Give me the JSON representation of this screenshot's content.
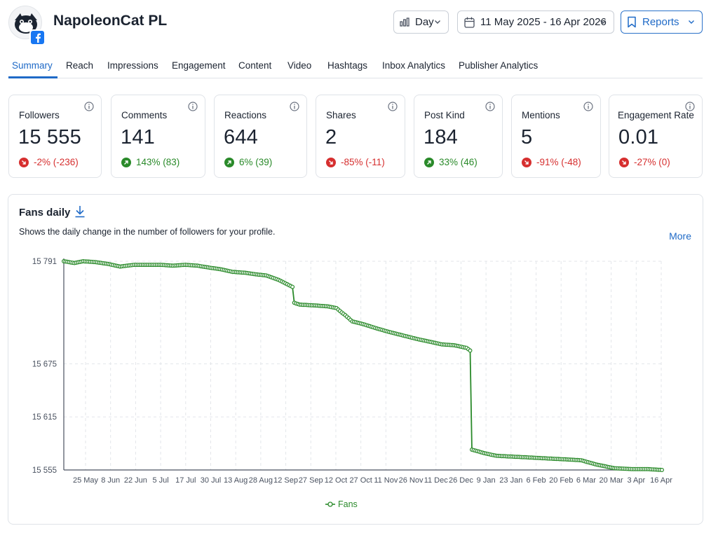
{
  "profile": {
    "name": "NapoleonCat PL",
    "network_icon": "facebook-icon"
  },
  "header": {
    "granularity": "Day",
    "date_range": "11 May 2025 - 16 Apr 2026",
    "reports_label": "Reports"
  },
  "tabs": [
    {
      "label": "Summary",
      "active": true
    },
    {
      "label": "Reach"
    },
    {
      "label": "Impressions"
    },
    {
      "label": "Engagement"
    },
    {
      "label": "Content"
    },
    {
      "label": "Video"
    },
    {
      "label": "Hashtags"
    },
    {
      "label": "Inbox Analytics"
    },
    {
      "label": "Publisher Analytics"
    }
  ],
  "stats": [
    {
      "label": "Followers",
      "value": "15 555",
      "change": "-2% (-236)",
      "trend": "down"
    },
    {
      "label": "Comments",
      "value": "141",
      "change": "143% (83)",
      "trend": "up"
    },
    {
      "label": "Reactions",
      "value": "644",
      "change": "6% (39)",
      "trend": "up"
    },
    {
      "label": "Shares",
      "value": "2",
      "change": "-85% (-11)",
      "trend": "down"
    },
    {
      "label": "Post Kind",
      "value": "184",
      "change": "33% (46)",
      "trend": "up"
    },
    {
      "label": "Mentions",
      "value": "5",
      "change": "-91% (-48)",
      "trend": "down"
    },
    {
      "label": "Engagement Rate",
      "value": "0.01",
      "change": "-27% (0)",
      "trend": "down"
    }
  ],
  "panel": {
    "title": "Fans daily",
    "description": "Shows the daily change in the number of followers for your profile.",
    "more_label": "More"
  },
  "colors": {
    "accent": "#1f6ac7",
    "positive": "#2a8a2a",
    "negative": "#d62f2f",
    "series": "#2a8a2a"
  },
  "chart_data": {
    "type": "line",
    "title": "Fans daily",
    "y_ticks": [
      "15 791",
      "15 675",
      "15 615",
      "15 555"
    ],
    "y_tick_values": [
      15791,
      15675,
      15615,
      15555
    ],
    "ylim": [
      15555,
      15791
    ],
    "x_ticks": [
      "25 May",
      "8 Jun",
      "22 Jun",
      "5 Jul",
      "17 Jul",
      "30 Jul",
      "13 Aug",
      "28 Aug",
      "12 Sep",
      "27 Sep",
      "12 Oct",
      "27 Oct",
      "11 Nov",
      "26 Nov",
      "11 Dec",
      "26 Dec",
      "9 Jan",
      "23 Jan",
      "6 Feb",
      "20 Feb",
      "6 Mar",
      "20 Mar",
      "3 Apr",
      "16 Apr"
    ],
    "x_range": [
      "2025-05-11",
      "2026-04-16"
    ],
    "grid": true,
    "legend_position": "bottom",
    "series": [
      {
        "name": "Fans",
        "points": [
          [
            "2025-05-11",
            15791
          ],
          [
            "2025-05-17",
            15789
          ],
          [
            "2025-05-22",
            15791
          ],
          [
            "2025-05-29",
            15790
          ],
          [
            "2025-06-05",
            15788
          ],
          [
            "2025-06-12",
            15785
          ],
          [
            "2025-06-20",
            15787
          ],
          [
            "2025-06-27",
            15787
          ],
          [
            "2025-07-05",
            15787
          ],
          [
            "2025-07-12",
            15786
          ],
          [
            "2025-07-19",
            15787
          ],
          [
            "2025-07-26",
            15786
          ],
          [
            "2025-08-01",
            15784
          ],
          [
            "2025-08-08",
            15782
          ],
          [
            "2025-08-15",
            15779
          ],
          [
            "2025-08-22",
            15778
          ],
          [
            "2025-08-29",
            15776
          ],
          [
            "2025-09-03",
            15775
          ],
          [
            "2025-09-10",
            15770
          ],
          [
            "2025-09-15",
            15765
          ],
          [
            "2025-09-18",
            15762
          ],
          [
            "2025-09-19",
            15744
          ],
          [
            "2025-09-22",
            15742
          ],
          [
            "2025-10-01",
            15741
          ],
          [
            "2025-10-08",
            15740
          ],
          [
            "2025-10-13",
            15738
          ],
          [
            "2025-10-16",
            15733
          ],
          [
            "2025-10-18",
            15730
          ],
          [
            "2025-10-22",
            15723
          ],
          [
            "2025-10-28",
            15720
          ],
          [
            "2025-11-05",
            15715
          ],
          [
            "2025-11-12",
            15711
          ],
          [
            "2025-11-20",
            15707
          ],
          [
            "2025-11-28",
            15703
          ],
          [
            "2025-12-05",
            15700
          ],
          [
            "2025-12-12",
            15697
          ],
          [
            "2025-12-19",
            15696
          ],
          [
            "2025-12-26",
            15693
          ],
          [
            "2025-12-28",
            15690
          ],
          [
            "2025-12-29",
            15578
          ],
          [
            "2026-01-05",
            15574
          ],
          [
            "2026-01-12",
            15571
          ],
          [
            "2026-01-22",
            15570
          ],
          [
            "2026-02-01",
            15569
          ],
          [
            "2026-02-10",
            15568
          ],
          [
            "2026-02-20",
            15567
          ],
          [
            "2026-03-01",
            15566
          ],
          [
            "2026-03-10",
            15561
          ],
          [
            "2026-03-20",
            15557
          ],
          [
            "2026-03-30",
            15556
          ],
          [
            "2026-04-08",
            15556
          ],
          [
            "2026-04-16",
            15555
          ]
        ]
      }
    ]
  }
}
